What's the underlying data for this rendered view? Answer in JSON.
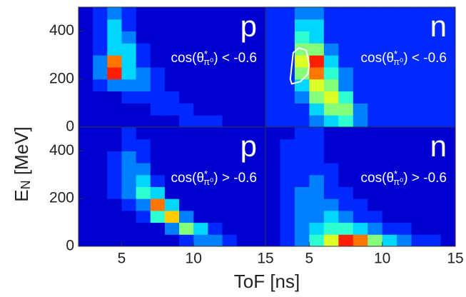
{
  "shared": {
    "xlabel": "ToF [ns]",
    "ylabel": {
      "main": "E",
      "sub": "N",
      "rest": " [MeV]"
    }
  },
  "chart_data": [
    {
      "type": "heatmap",
      "label": "p",
      "cut": {
        "main": "cos(θ",
        "sup": "*",
        "sub": "π⁰",
        "rest": ") < -0.6"
      },
      "xlim": [
        2,
        15
      ],
      "ylim": [
        0,
        500
      ],
      "yticks": [
        0,
        200,
        400
      ],
      "zlim": [
        0,
        10
      ],
      "xbins": [
        2,
        3,
        4,
        5,
        6,
        7,
        8,
        9,
        10,
        11,
        12,
        13,
        14,
        15
      ],
      "ybins": [
        0,
        50,
        100,
        150,
        200,
        250,
        300,
        350,
        400,
        450,
        500
      ],
      "z": [
        [
          0,
          0,
          0,
          0,
          0,
          0,
          0,
          1,
          1,
          1,
          0,
          0,
          0
        ],
        [
          0,
          0,
          0,
          0,
          0,
          1,
          1,
          1,
          0,
          0,
          0,
          0,
          0
        ],
        [
          0,
          0,
          0,
          1,
          1,
          1,
          1,
          0,
          0,
          0,
          0,
          0,
          0
        ],
        [
          0,
          1,
          2,
          2,
          2,
          1,
          0,
          0,
          0,
          0,
          0,
          0,
          0
        ],
        [
          0,
          2,
          9,
          3,
          2,
          1,
          0,
          0,
          0,
          0,
          0,
          0,
          0
        ],
        [
          0,
          2,
          8,
          3,
          1,
          0,
          0,
          0,
          0,
          0,
          0,
          0,
          0
        ],
        [
          0,
          1,
          3,
          3,
          1,
          0,
          0,
          0,
          0,
          0,
          0,
          0,
          0
        ],
        [
          0,
          1,
          3,
          2,
          0,
          0,
          0,
          0,
          0,
          0,
          0,
          0,
          0
        ],
        [
          0,
          1,
          3,
          1,
          0,
          0,
          0,
          0,
          0,
          0,
          0,
          0,
          0
        ],
        [
          0,
          1,
          2,
          1,
          0,
          0,
          0,
          0,
          0,
          0,
          0,
          0,
          0
        ]
      ]
    },
    {
      "type": "heatmap",
      "label": "n",
      "cut": {
        "main": "cos(θ",
        "sup": "*",
        "sub": "π⁰",
        "rest": ") < -0.6"
      },
      "xlim": [
        2,
        15
      ],
      "ylim": [
        0,
        500
      ],
      "zlim": [
        0,
        10
      ],
      "xbins": [
        2,
        3,
        4,
        5,
        6,
        7,
        8,
        9,
        10,
        11,
        12,
        13,
        14,
        15
      ],
      "ybins": [
        0,
        50,
        100,
        150,
        200,
        250,
        300,
        350,
        400,
        450,
        500
      ],
      "z": [
        [
          1,
          1,
          1,
          2,
          3,
          4,
          2,
          1,
          1,
          1,
          1,
          1,
          1
        ],
        [
          1,
          1,
          1,
          3,
          5,
          5,
          2,
          1,
          1,
          1,
          1,
          1,
          1
        ],
        [
          1,
          1,
          2,
          5,
          6,
          4,
          1,
          1,
          1,
          1,
          1,
          1,
          1
        ],
        [
          1,
          1,
          3,
          6,
          5,
          2,
          1,
          1,
          1,
          1,
          1,
          1,
          1
        ],
        [
          1,
          1,
          5,
          8,
          4,
          2,
          1,
          1,
          1,
          1,
          1,
          1,
          1
        ],
        [
          1,
          1,
          6,
          9,
          3,
          1,
          1,
          1,
          1,
          1,
          1,
          1,
          1
        ],
        [
          1,
          1,
          5,
          5,
          2,
          1,
          1,
          1,
          1,
          1,
          1,
          1,
          1
        ],
        [
          1,
          1,
          4,
          3,
          1,
          1,
          1,
          1,
          1,
          1,
          1,
          1,
          1
        ],
        [
          1,
          1,
          3,
          3,
          1,
          1,
          1,
          1,
          1,
          1,
          1,
          1,
          1
        ],
        [
          1,
          1,
          2,
          2,
          1,
          1,
          1,
          1,
          1,
          1,
          1,
          1,
          1
        ]
      ],
      "contour": {
        "color": "#ffffff",
        "x": [
          3.7,
          3.9,
          4.3,
          4.8,
          5.0,
          4.9,
          4.4,
          3.8
        ],
        "y": [
          200,
          310,
          330,
          320,
          260,
          220,
          190,
          180
        ]
      }
    },
    {
      "type": "heatmap",
      "label": "p",
      "cut": {
        "main": "cos(θ",
        "sup": "*",
        "sub": "π⁰",
        "rest": ") > -0.6"
      },
      "xlim": [
        2,
        15
      ],
      "ylim": [
        0,
        500
      ],
      "xticks": [
        5,
        10,
        15
      ],
      "yticks": [
        0,
        200,
        400
      ],
      "zlim": [
        0,
        10
      ],
      "xbins": [
        2,
        3,
        4,
        5,
        6,
        7,
        8,
        9,
        10,
        11,
        12,
        13,
        14,
        15
      ],
      "ybins": [
        0,
        50,
        100,
        150,
        200,
        250,
        300,
        350,
        400,
        450,
        500
      ],
      "z": [
        [
          0,
          0,
          0,
          0,
          0,
          0,
          0,
          1,
          2,
          2,
          1,
          0,
          0
        ],
        [
          0,
          0,
          0,
          0,
          0,
          0,
          2,
          5,
          3,
          1,
          0,
          0,
          0
        ],
        [
          0,
          0,
          0,
          0,
          1,
          4,
          7,
          2,
          0,
          0,
          0,
          0,
          0
        ],
        [
          0,
          0,
          0,
          1,
          2,
          8,
          3,
          0,
          0,
          0,
          0,
          0,
          0
        ],
        [
          0,
          0,
          1,
          2,
          4,
          3,
          0,
          0,
          0,
          0,
          0,
          0,
          0
        ],
        [
          0,
          0,
          1,
          2,
          3,
          1,
          0,
          0,
          0,
          0,
          0,
          0,
          0
        ],
        [
          0,
          0,
          1,
          2,
          2,
          0,
          0,
          0,
          0,
          0,
          0,
          0,
          0
        ],
        [
          0,
          0,
          1,
          2,
          1,
          0,
          0,
          0,
          0,
          0,
          0,
          0,
          0
        ],
        [
          0,
          0,
          0,
          1,
          1,
          0,
          0,
          0,
          0,
          0,
          0,
          0,
          0
        ],
        [
          0,
          0,
          0,
          1,
          0,
          0,
          0,
          0,
          0,
          0,
          0,
          0,
          0
        ]
      ]
    },
    {
      "type": "heatmap",
      "label": "n",
      "cut": {
        "main": "cos(θ",
        "sup": "*",
        "sub": "π⁰",
        "rest": ") > -0.6"
      },
      "xlim": [
        2,
        15
      ],
      "ylim": [
        0,
        500
      ],
      "xticks": [
        5,
        10,
        15
      ],
      "zlim": [
        0,
        10
      ],
      "xbins": [
        2,
        3,
        4,
        5,
        6,
        7,
        8,
        9,
        10,
        11,
        12,
        13,
        14,
        15
      ],
      "ybins": [
        0,
        50,
        100,
        150,
        200,
        250,
        300,
        350,
        400,
        450,
        500
      ],
      "z": [
        [
          0,
          1,
          2,
          4,
          6,
          9,
          8,
          5,
          3,
          2,
          1,
          1,
          0
        ],
        [
          0,
          1,
          2,
          3,
          4,
          4,
          3,
          2,
          1,
          1,
          0,
          0,
          0
        ],
        [
          0,
          1,
          2,
          2,
          3,
          2,
          1,
          1,
          0,
          0,
          0,
          0,
          0
        ],
        [
          0,
          1,
          2,
          2,
          2,
          1,
          1,
          0,
          0,
          0,
          0,
          0,
          0
        ],
        [
          0,
          1,
          2,
          2,
          1,
          1,
          0,
          0,
          0,
          0,
          0,
          0,
          0
        ],
        [
          0,
          1,
          1,
          2,
          1,
          0,
          0,
          0,
          0,
          0,
          0,
          0,
          0
        ],
        [
          0,
          1,
          1,
          1,
          1,
          0,
          0,
          0,
          0,
          0,
          0,
          0,
          0
        ],
        [
          0,
          1,
          1,
          1,
          0,
          0,
          0,
          0,
          0,
          0,
          0,
          0,
          0
        ],
        [
          0,
          1,
          1,
          1,
          0,
          0,
          0,
          0,
          0,
          0,
          0,
          0,
          0
        ],
        [
          0,
          0,
          1,
          1,
          0,
          0,
          0,
          0,
          0,
          0,
          0,
          0,
          0
        ]
      ]
    }
  ]
}
